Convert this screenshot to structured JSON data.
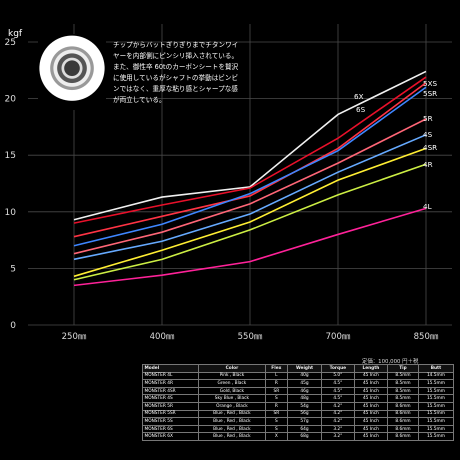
{
  "chart_data": {
    "type": "line",
    "title": "",
    "xlabel": "",
    "ylabel": "kgf",
    "categories": [
      "250㎜",
      "400㎜",
      "550㎜",
      "700㎜",
      "850㎜"
    ],
    "x": [
      250,
      400,
      550,
      700,
      850
    ],
    "yticks": [
      0,
      5,
      10,
      15,
      20,
      25
    ],
    "ylim": [
      0,
      25
    ],
    "xlim": [
      250,
      850
    ],
    "grid": true,
    "series": [
      {
        "name": "6X",
        "label_visible": "6X",
        "color": "#f0f0f0",
        "values": [
          9.3,
          11.3,
          12.2,
          18.6,
          22.4
        ]
      },
      {
        "name": "6S",
        "label_visible": "6S",
        "color": "#e8102a",
        "values": [
          9.0,
          10.6,
          12.1,
          16.5,
          21.9
        ]
      },
      {
        "name": "5XS",
        "label_visible": "5XS",
        "color": "#ff3344",
        "values": [
          7.8,
          9.6,
          11.4,
          15.6,
          21.4
        ]
      },
      {
        "name": "5SR",
        "label_visible": "5SR",
        "color": "#3e86ff",
        "values": [
          7.0,
          8.9,
          11.6,
          15.4,
          21.0
        ]
      },
      {
        "name": "5R",
        "label_visible": "5R",
        "color": "#ff6677",
        "values": [
          6.3,
          8.2,
          10.7,
          14.3,
          18.2
        ]
      },
      {
        "name": "4S",
        "label_visible": "4S",
        "color": "#66aaff",
        "values": [
          5.8,
          7.4,
          9.8,
          13.5,
          16.8
        ]
      },
      {
        "name": "4SR",
        "label_visible": "4SR",
        "color": "#ffee33",
        "values": [
          4.3,
          6.6,
          9.1,
          12.8,
          15.6
        ]
      },
      {
        "name": "4R",
        "label_visible": "4R",
        "color": "#ccee44",
        "values": [
          4.0,
          5.8,
          8.4,
          11.5,
          14.2
        ]
      },
      {
        "name": "4L",
        "label_visible": "4L",
        "color": "#ff2299",
        "values": [
          3.5,
          4.4,
          5.6,
          8.0,
          10.3
        ]
      }
    ]
  },
  "note": {
    "text": "チップからバットぎりぎりまでチタンワイヤーを内部側にピンシリ挿入されている。また、御性卒 60tのカーボンシートを贅沢に使用しているがシャフトの挙動はビンビンではなく、重厚な粘り感とシャープな感が両立している。"
  },
  "price": "定価：100,000 円＋税",
  "table": {
    "headers": [
      "Model",
      "Color",
      "Flex",
      "Weight",
      "Torque",
      "Length",
      "Tip",
      "Butt"
    ],
    "rows": [
      [
        "MONSTER 4L",
        "Pink , Black",
        "L",
        "40g",
        "5.0°",
        "45 Inch",
        "8.5mm",
        "14.5mm"
      ],
      [
        "MONSTER 4R",
        "Green , Black",
        "R",
        "45g",
        "4.5°",
        "45 Inch",
        "8.5mm",
        "15.5mm"
      ],
      [
        "MONSTER 4SR",
        "Gold, Black",
        "SR",
        "46g",
        "4.5°",
        "45 Inch",
        "8.5mm",
        "15.5mm"
      ],
      [
        "MONSTER 4S",
        "Sky Blue , Black",
        "S",
        "48g",
        "4.5°",
        "45 Inch",
        "8.5mm",
        "15.5mm"
      ],
      [
        "MONSTER 5R",
        "Orange , Black",
        "R",
        "54g",
        "4.2°",
        "45 Inch",
        "8.6mm",
        "15.5mm"
      ],
      [
        "MONSTER 5SR",
        "Blue , Red , Black",
        "SR",
        "56g",
        "4.2°",
        "45 Inch",
        "8.6mm",
        "15.5mm"
      ],
      [
        "MONSTER 5S",
        "Blue , Red , Black",
        "S",
        "57g",
        "4.2°",
        "45 Inch",
        "8.6mm",
        "15.5mm"
      ],
      [
        "MONSTER 6S",
        "Blue , Red , Black",
        "S",
        "64g",
        "3.2°",
        "45 Inch",
        "8.6mm",
        "15.5mm"
      ],
      [
        "MONSTER 6X",
        "Blue , Red , Black",
        "X",
        "68g",
        "3.2°",
        "45 Inch",
        "8.6mm",
        "15.5mm"
      ]
    ]
  }
}
